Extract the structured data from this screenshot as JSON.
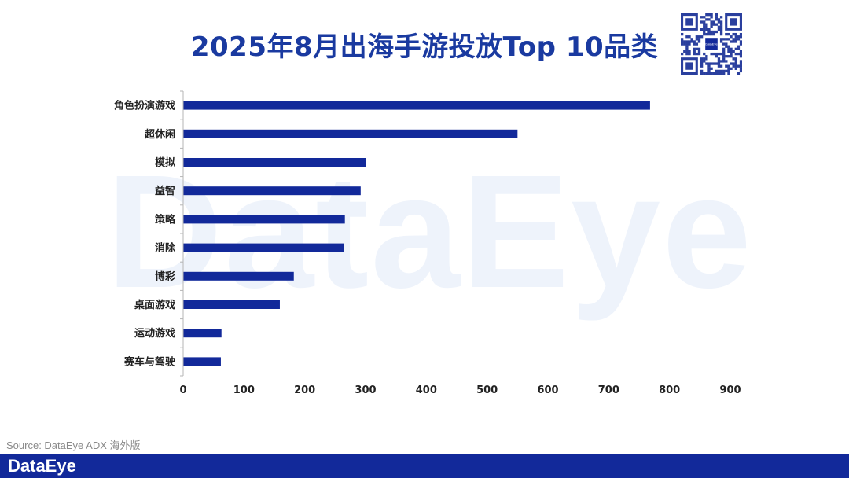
{
  "title": "2025年8月出海手游投放Top 10品类",
  "watermark_text": "DataEye",
  "source": "Source: DataEye ADX 海外版",
  "footer_brand": "DataEye",
  "qr_logo_text": "DataEye",
  "colors": {
    "bar": "#12299a",
    "title": "#1a3aa0",
    "footer": "#12299a"
  },
  "chart_data": {
    "type": "bar",
    "orientation": "horizontal",
    "categories": [
      "角色扮演游戏",
      "超休闲",
      "模拟",
      "益智",
      "策略",
      "消除",
      "博彩",
      "桌面游戏",
      "运动游戏",
      "赛车与驾驶"
    ],
    "values": [
      768,
      550,
      301,
      292,
      266,
      265,
      182,
      159,
      63,
      62
    ],
    "xlim": [
      0,
      900
    ],
    "xticks": [
      "0",
      "100",
      "200",
      "300",
      "400",
      "500",
      "600",
      "700",
      "800",
      "900"
    ],
    "grid": false
  }
}
